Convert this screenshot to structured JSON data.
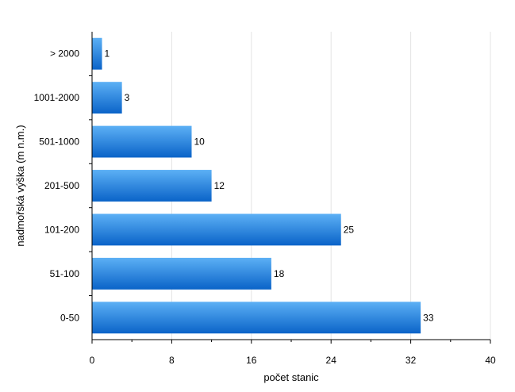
{
  "chart_data": {
    "type": "bar",
    "orientation": "horizontal",
    "categories": [
      "> 2000",
      "1001-2000",
      "501-1000",
      "201-500",
      "101-200",
      "51-100",
      "0-50"
    ],
    "values": [
      1,
      3,
      10,
      12,
      25,
      18,
      33
    ],
    "title": "",
    "xlabel": "počet stanic",
    "ylabel": "nadmořská výška (m n.m.)",
    "xlim": [
      0,
      40
    ],
    "xticks": [
      0,
      8,
      16,
      24,
      32,
      40
    ],
    "grid": true,
    "legend": "none",
    "colors": {
      "bar_top": "#5cb0f5",
      "bar_bottom": "#0a63c8",
      "grid": "#e4e4e4",
      "axis": "#000000"
    }
  }
}
